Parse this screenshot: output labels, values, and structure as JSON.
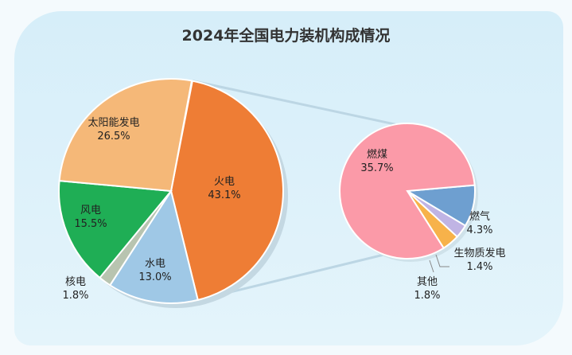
{
  "chart_data": {
    "type": "pie",
    "title": "2024年全国电力装机构成情况",
    "main": [
      {
        "name": "火电",
        "value": 43.1,
        "label": "43.1%",
        "color": "#ee7d35"
      },
      {
        "name": "水电",
        "value": 13.0,
        "label": "13.0%",
        "color": "#9fc8e6"
      },
      {
        "name": "核电",
        "value": 1.8,
        "label": "1.8%",
        "color": "#b8c4b0"
      },
      {
        "name": "风电",
        "value": 15.5,
        "label": "15.5%",
        "color": "#1fae55"
      },
      {
        "name": "太阳能发电",
        "value": 26.5,
        "label": "26.5%",
        "color": "#f5b878"
      }
    ],
    "breakdown_of": "火电",
    "secondary": [
      {
        "name": "燃气",
        "value": 4.3,
        "label": "4.3%",
        "color": "#6e9fd0"
      },
      {
        "name": "生物质发电",
        "value": 1.4,
        "label": "1.4%",
        "color": "#c0b4e4"
      },
      {
        "name": "其他",
        "value": 1.8,
        "label": "1.8%",
        "color": "#f7b24a"
      },
      {
        "name": "燃煤",
        "value": 35.7,
        "label": "35.7%",
        "color": "#fb9aa8"
      }
    ]
  }
}
